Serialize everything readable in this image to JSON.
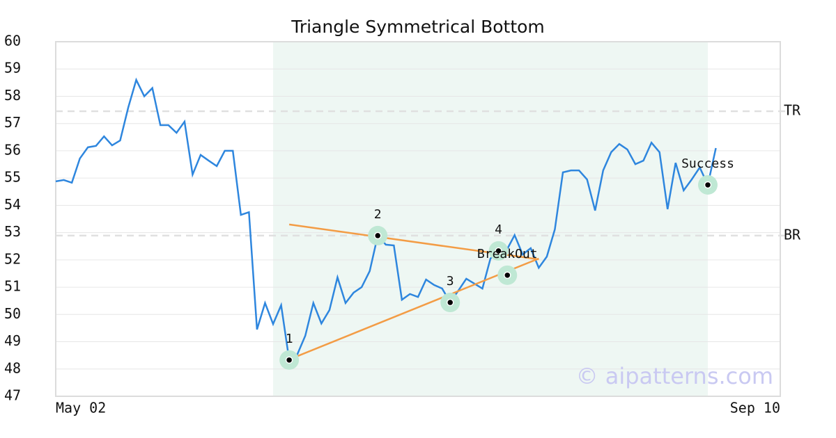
{
  "chart_data": {
    "type": "line",
    "title": "Triangle Symmetrical Bottom",
    "x": [
      0,
      1,
      2,
      3,
      4,
      5,
      6,
      7,
      8,
      9,
      10,
      11,
      12,
      13,
      14,
      15,
      16,
      17,
      18,
      19,
      20,
      21,
      22,
      23,
      24,
      25,
      26,
      27,
      28,
      29,
      30,
      31,
      32,
      33,
      34,
      35,
      36,
      37,
      38,
      39,
      40,
      41,
      42,
      43,
      44,
      45,
      46,
      47,
      48,
      49,
      50,
      51,
      52,
      53,
      54,
      55,
      56,
      57,
      58,
      59,
      60,
      61,
      62,
      63,
      64,
      65,
      66,
      67,
      68,
      69,
      70,
      71,
      72,
      73,
      74,
      75,
      76,
      77,
      78,
      79,
      80,
      81,
      82
    ],
    "xlim": [
      0,
      90
    ],
    "xticks": [
      {
        "value": 0,
        "label": "May 02"
      },
      {
        "value": 90,
        "label": "Sep 10"
      }
    ],
    "series": [
      {
        "color": "#2e86de",
        "values": [
          54.88,
          54.93,
          54.83,
          55.72,
          56.13,
          56.18,
          56.53,
          56.2,
          56.38,
          57.58,
          58.6,
          58.0,
          58.3,
          56.94,
          56.94,
          56.66,
          57.07,
          55.13,
          55.85,
          55.64,
          55.44,
          56.0,
          56.0,
          53.65,
          53.75,
          49.45,
          50.42,
          49.65,
          50.34,
          48.33,
          48.53,
          49.22,
          50.42,
          49.67,
          50.16,
          51.36,
          50.42,
          50.8,
          51.0,
          51.59,
          52.89,
          52.56,
          52.53,
          50.54,
          50.75,
          50.64,
          51.28,
          51.08,
          50.95,
          50.44,
          50.87,
          51.31,
          51.13,
          50.95,
          52.05,
          52.33,
          52.35,
          52.91,
          52.2,
          52.43,
          51.71,
          52.12,
          53.12,
          55.21,
          55.28,
          55.28,
          54.95,
          53.81,
          55.28,
          55.95,
          56.25,
          56.05,
          55.51,
          55.64,
          56.3,
          55.95,
          53.86,
          55.56,
          54.55,
          54.95,
          55.39,
          54.75,
          56.1
        ]
      }
    ],
    "ylim": [
      47,
      60
    ],
    "yticks": [
      47,
      48,
      49,
      50,
      51,
      52,
      53,
      54,
      55,
      56,
      57,
      58,
      59,
      60
    ],
    "grid": true,
    "shaded_region": {
      "x": [
        27,
        81
      ],
      "color": "#eef7f3"
    },
    "trendlines": [
      {
        "color": "#f39c45",
        "x": [
          29,
          60
        ],
        "y": [
          53.3,
          52.02
        ]
      },
      {
        "color": "#f39c45",
        "x": [
          29,
          60
        ],
        "y": [
          48.35,
          52.05
        ]
      }
    ],
    "reference_lines": [
      {
        "label": "TR",
        "value": 57.45
      },
      {
        "label": "BR",
        "value": 52.89
      }
    ],
    "points": [
      {
        "label": "1",
        "x": 29,
        "y": 48.33
      },
      {
        "label": "2",
        "x": 40,
        "y": 52.89
      },
      {
        "label": "3",
        "x": 49,
        "y": 50.44
      },
      {
        "label": "4",
        "x": 55,
        "y": 52.33
      },
      {
        "label": "BreakOut",
        "x": 56.1,
        "y": 51.44
      },
      {
        "label": "Success",
        "x": 81,
        "y": 54.75
      }
    ],
    "watermark": "© aipatterns.com"
  }
}
